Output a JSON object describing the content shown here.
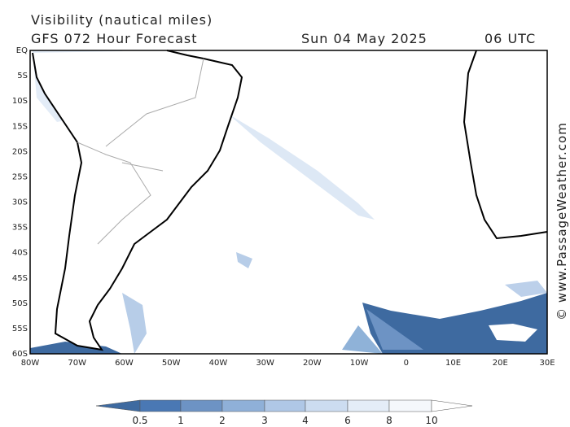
{
  "header": {
    "title": "Visibility (nautical miles)",
    "model": "GFS 072 Hour Forecast",
    "date": "Sun 04 May 2025",
    "time": "06 UTC"
  },
  "lat_labels": [
    "EQ",
    "5S",
    "10S",
    "15S",
    "20S",
    "25S",
    "30S",
    "35S",
    "40S",
    "45S",
    "50S",
    "55S",
    "60S"
  ],
  "lon_labels": [
    "80W",
    "70W",
    "60W",
    "50W",
    "40W",
    "30W",
    "20W",
    "10W",
    "0",
    "10E",
    "20E",
    "30E"
  ],
  "colorbar": {
    "ticks": [
      0.5,
      1,
      2,
      3,
      4,
      6,
      8,
      10
    ]
  },
  "watermark": "© www.PassageWeather.com"
}
